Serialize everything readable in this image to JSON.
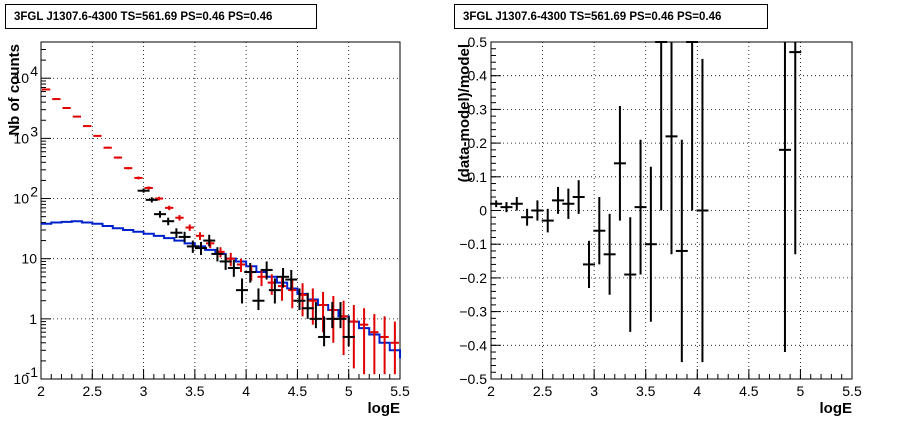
{
  "colors": {
    "data": "#000000",
    "model": "#e00000",
    "background": "#0022cc",
    "grid": "#000000"
  },
  "chart_data": [
    {
      "type": "line",
      "title": "3FGL J1307.6-4300 TS=561.69 PS=0.46 PS=0.46",
      "xlabel": "logE",
      "ylabel": "Nb of counts",
      "xlim": [
        2,
        5.5
      ],
      "ylim": [
        0.1,
        40000
      ],
      "yscale": "log",
      "grid": true,
      "x_ticks": [
        "2",
        "2.5",
        "3",
        "3.5",
        "4",
        "4.5",
        "5",
        "5.5"
      ],
      "y_ticks": [
        "10^-1",
        "1",
        "10",
        "10^2",
        "10^3",
        "10^4"
      ],
      "series": [
        {
          "role": "data",
          "x": [
            3.0,
            3.08,
            3.16,
            3.24,
            3.32,
            3.4,
            3.48,
            3.56,
            3.64,
            3.72,
            3.8,
            3.88,
            3.96,
            4.04,
            4.12,
            4.2,
            4.28,
            4.36,
            4.44,
            4.52,
            4.6,
            4.68,
            4.76,
            4.84,
            4.92,
            5.0
          ],
          "y": [
            135,
            95,
            55,
            42,
            27,
            23,
            16,
            15,
            20,
            12,
            9,
            7,
            3,
            6,
            2,
            6.5,
            3,
            5,
            4.5,
            2,
            1.5,
            1,
            0.5,
            1,
            1,
            0.5
          ],
          "err_lo": [
            125,
            86,
            48,
            36,
            22,
            19,
            12.5,
            11.5,
            16,
            9,
            6.5,
            5,
            1.8,
            4,
            1.4,
            4.5,
            1.8,
            3.3,
            3,
            1.4,
            1,
            0.7,
            0.35,
            0.7,
            0.7,
            0.35
          ],
          "err_hi": [
            147,
            105,
            62,
            48,
            32,
            28,
            20,
            19,
            25,
            15.5,
            12,
            9.5,
            4.7,
            8.5,
            3.2,
            9,
            4.7,
            7,
            6.5,
            3.2,
            2.7,
            1.9,
            1.1,
            1.9,
            1.9,
            1.1
          ]
        },
        {
          "role": "model",
          "x": [
            2.0,
            2.1,
            2.2,
            2.3,
            2.4,
            2.5,
            2.6,
            2.7,
            2.8,
            2.9,
            3.0,
            3.1,
            3.2,
            3.3,
            3.4,
            3.5,
            3.6,
            3.7,
            3.8,
            3.9,
            4.0,
            4.1,
            4.2,
            4.3,
            4.4,
            4.5,
            4.6,
            4.7,
            4.8,
            4.9,
            5.0,
            5.1,
            5.2,
            5.3,
            5.4,
            5.5
          ],
          "y": [
            6500,
            4500,
            3200,
            2300,
            1600,
            1100,
            700,
            480,
            320,
            220,
            150,
            100,
            70,
            48,
            33,
            24,
            18,
            13,
            10,
            8,
            6,
            5,
            4,
            3.5,
            3,
            2.5,
            2,
            1.7,
            1.4,
            1.1,
            0.9,
            0.8,
            0.6,
            0.5,
            0.4,
            0.3
          ],
          "err_lo": [
            6440,
            4440,
            3140,
            2240,
            1560,
            1070,
            675,
            460,
            305,
            208,
            141,
            93,
            64,
            43,
            29,
            20.5,
            15,
            10.5,
            7.5,
            6,
            4.3,
            3.5,
            2.5,
            2,
            1.5,
            1.1,
            0.8,
            0.6,
            0.4,
            0.25,
            0.15,
            0.12,
            0.12,
            0.12,
            0.12,
            0.12
          ],
          "err_hi": [
            6560,
            4560,
            3260,
            2360,
            1640,
            1130,
            725,
            500,
            335,
            232,
            159,
            107,
            76,
            53,
            37,
            27.5,
            21,
            15.5,
            12.5,
            10,
            7.7,
            6.5,
            5.5,
            5,
            4.5,
            3.9,
            3.2,
            2.8,
            2.4,
            2,
            1.7,
            1.5,
            1.2,
            1.1,
            0.9,
            0.8
          ]
        },
        {
          "role": "background",
          "x": [
            2.0,
            2.1,
            2.2,
            2.3,
            2.4,
            2.5,
            2.6,
            2.7,
            2.8,
            2.9,
            3.0,
            3.1,
            3.2,
            3.3,
            3.4,
            3.5,
            3.6,
            3.7,
            3.8,
            3.9,
            4.0,
            4.1,
            4.2,
            4.3,
            4.4,
            4.5,
            4.6,
            4.7,
            4.8,
            4.9,
            5.0,
            5.1,
            5.2,
            5.3,
            5.4,
            5.5
          ],
          "y": [
            38,
            40,
            41,
            42,
            40,
            38,
            35,
            32,
            30,
            28,
            26,
            24,
            22,
            20,
            18,
            16,
            14,
            12,
            10,
            9,
            7.5,
            6,
            5,
            4,
            3.2,
            2.6,
            2.1,
            1.7,
            1.4,
            1.1,
            0.9,
            0.7,
            0.55,
            0.4,
            0.3,
            0.22
          ]
        }
      ]
    },
    {
      "type": "scatter",
      "title": "3FGL J1307.6-4300 TS=561.69 PS=0.46 PS=0.46",
      "xlabel": "logE",
      "ylabel": "(data-model)/model",
      "xlim": [
        2,
        5.5
      ],
      "ylim": [
        -0.5,
        0.5
      ],
      "grid": true,
      "x_ticks": [
        "2",
        "2.5",
        "3",
        "3.5",
        "4",
        "4.5",
        "5",
        "5.5"
      ],
      "y_ticks": [
        "−0.5",
        "−0.4",
        "−0.3",
        "−0.2",
        "−0.1",
        "0",
        "0.1",
        "0.2",
        "0.3",
        "0.4",
        "0.5"
      ],
      "series": [
        {
          "role": "residual",
          "x": [
            2.05,
            2.15,
            2.25,
            2.35,
            2.45,
            2.55,
            2.65,
            2.75,
            2.85,
            2.95,
            3.05,
            3.15,
            3.25,
            3.35,
            3.45,
            3.55,
            3.65,
            3.75,
            3.85,
            3.95,
            4.05,
            4.85,
            4.95
          ],
          "y": [
            0.02,
            0.01,
            0.02,
            -0.02,
            0.0,
            -0.03,
            0.03,
            0.02,
            0.04,
            -0.16,
            -0.06,
            -0.13,
            0.14,
            -0.19,
            0.01,
            -0.1,
            0.5,
            0.22,
            -0.12,
            0.5,
            0.0,
            0.18,
            0.47
          ],
          "err": [
            0.01,
            0.015,
            0.02,
            0.025,
            0.03,
            0.035,
            0.04,
            0.045,
            0.05,
            0.07,
            0.1,
            0.12,
            0.17,
            0.17,
            0.2,
            0.23,
            0.5,
            0.35,
            0.33,
            0.5,
            0.45,
            0.6,
            0.6
          ]
        }
      ]
    }
  ]
}
